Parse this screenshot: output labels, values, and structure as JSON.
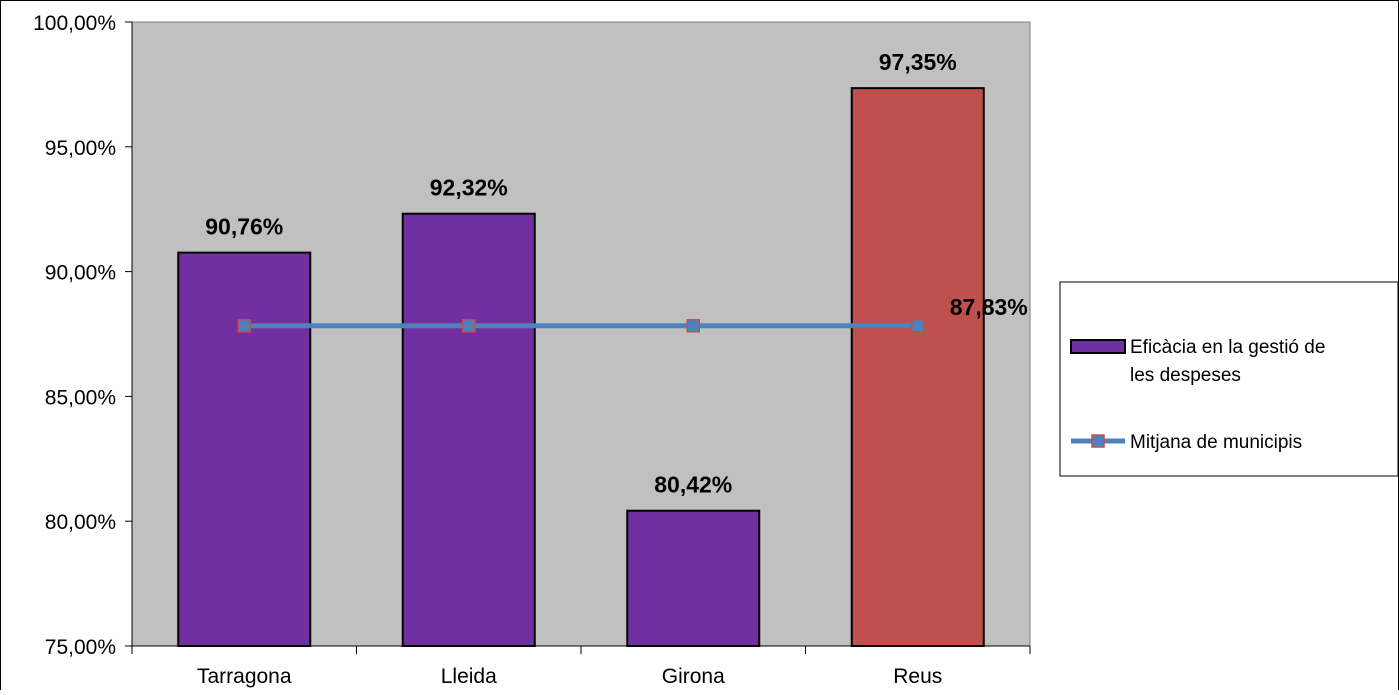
{
  "chart_data": {
    "type": "bar",
    "categories": [
      "Tarragona",
      "Lleida",
      "Girona",
      "Reus"
    ],
    "series": [
      {
        "name": "Eficàcia en la gestió de les despeses",
        "type": "bar",
        "values": [
          90.76,
          92.32,
          80.42,
          97.35
        ],
        "labels": [
          "90,76%",
          "92,32%",
          "80,42%",
          "97,35%"
        ],
        "colors": [
          "#7030A0",
          "#7030A0",
          "#7030A0",
          "#C0504D"
        ]
      },
      {
        "name": "Mitjana de municipis",
        "type": "line",
        "values": [
          87.83,
          87.83,
          87.83,
          87.83
        ],
        "label": "87,83%",
        "line_color": "#4F81BD",
        "marker_color": "#4F81BD",
        "marker_edge_color": "#C0504D"
      }
    ],
    "ylim": [
      75,
      100
    ],
    "yticks": [
      75,
      80,
      85,
      90,
      95,
      100
    ],
    "ytick_labels": [
      "75,00%",
      "80,00%",
      "85,00%",
      "90,00%",
      "95,00%",
      "100,00%"
    ],
    "plot_background": "#C0C0C0",
    "grid": false,
    "legend_position": "right",
    "legend_lines": [
      [
        "Eficàcia en la gestió de",
        "les despeses"
      ],
      [
        "Mitjana de municipis"
      ]
    ]
  }
}
